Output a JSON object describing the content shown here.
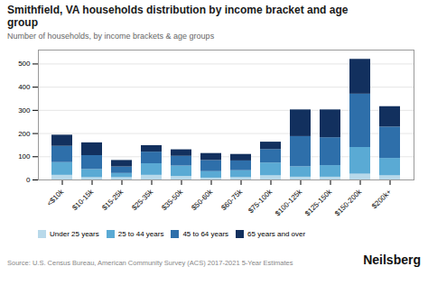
{
  "chart_data": {
    "type": "bar",
    "stacked": true,
    "title": "Smithfield, VA households distribution by income bracket and age\ngroup",
    "subtitle": "Number of households, by income brackets & age groups",
    "annotations": [
      "Source: U.S. Census Bureau, American Community Survey (ACS) 2017-2021 5-Year Estimates",
      "Neilsberg"
    ],
    "categories": [
      "<$10k",
      "$10-15k",
      "$15-25k",
      "$25-35k",
      "$35-50k",
      "$50-60k",
      "$60-75k",
      "$75-100k",
      "$100-125k",
      "$125-150k",
      "$150-200k",
      "$200k+"
    ],
    "series": [
      {
        "name": "Under 25 years",
        "color": "#b8d9ea",
        "values": [
          20,
          10,
          10,
          20,
          15,
          8,
          10,
          18,
          12,
          12,
          25,
          18
        ]
      },
      {
        "name": "25 to 44 years",
        "color": "#5aaad4",
        "values": [
          55,
          35,
          18,
          50,
          45,
          28,
          30,
          55,
          45,
          50,
          115,
          75
        ]
      },
      {
        "name": "45 to 64 years",
        "color": "#2e6faa",
        "values": [
          70,
          60,
          28,
          50,
          42,
          48,
          42,
          58,
          130,
          120,
          230,
          135
        ]
      },
      {
        "name": "65 years and over",
        "color": "#12305e",
        "values": [
          48,
          55,
          28,
          28,
          28,
          30,
          28,
          32,
          115,
          120,
          150,
          88
        ]
      }
    ],
    "ylim": [
      0,
      560
    ],
    "yticks": [
      0,
      100,
      200,
      300,
      400,
      500
    ],
    "grid": true,
    "legend": "lower left"
  }
}
